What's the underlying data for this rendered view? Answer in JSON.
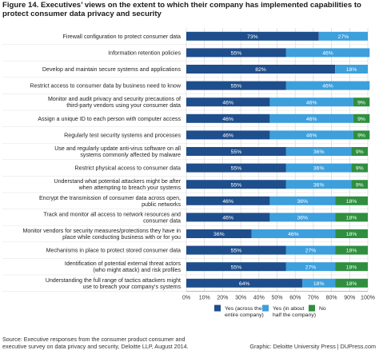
{
  "header": {
    "title": "Figure 14. Executives’ views on the extent to which their company has implemented capabilities to protect consumer data privacy and security"
  },
  "chart_data": {
    "type": "bar",
    "orientation": "horizontal",
    "stacked": true,
    "categories": [
      [
        "Firewall configuration to protect consumer data"
      ],
      [
        "Information retention policies"
      ],
      [
        "Develop and maintain secure systems and applications"
      ],
      [
        "Restrict access to consumer data by business need to know"
      ],
      [
        "Monitor and audit privacy and security precautions of",
        "third-party vendors using your consumer data"
      ],
      [
        "Assign a unique ID to each person with computer access"
      ],
      [
        "Regularly test security systems and processes"
      ],
      [
        "Use and regularly update anti-virus software on all",
        "systems commonly affected by malware"
      ],
      [
        "Restrict physical access to consumer data"
      ],
      [
        "Understand what potential attackers might be after",
        "when attempting to breach your systems"
      ],
      [
        "Encrypt the transmission of consumer data across open,",
        "public networks"
      ],
      [
        "Track and monitor all access to network resources and",
        "consumer data"
      ],
      [
        "Monitor vendors for security measures/protections they have in",
        "place while conducting business with or for you"
      ],
      [
        "Mechanisms in place to protect stored consumer data"
      ],
      [
        "Identification of potential external threat actors",
        "(who might attack) and risk profiles"
      ],
      [
        "Understanding the full range of tactics attackers might",
        "use to breach your company’s systems"
      ]
    ],
    "series": [
      {
        "name": "Yes (across the entire company)",
        "color": "#1f4e8c",
        "values": [
          73,
          55,
          82,
          55,
          46,
          46,
          46,
          55,
          55,
          55,
          46,
          46,
          36,
          55,
          55,
          64
        ]
      },
      {
        "name": "Yes (in about half the company)",
        "color": "#3d9fdc",
        "values": [
          27,
          46,
          18,
          46,
          46,
          46,
          46,
          36,
          36,
          36,
          36,
          36,
          46,
          27,
          27,
          18
        ]
      },
      {
        "name": "No",
        "color": "#2f8f3f",
        "values": [
          0,
          0,
          0,
          0,
          9,
          9,
          9,
          9,
          9,
          9,
          18,
          18,
          18,
          18,
          18,
          18
        ]
      }
    ],
    "value_format": "percent",
    "xlim": [
      0,
      100
    ],
    "xticks": [
      "0%",
      "10%",
      "20%",
      "30%",
      "40%",
      "50%",
      "60%",
      "70%",
      "80%",
      "90%",
      "100%"
    ],
    "grid": true,
    "legend_position": "bottom"
  },
  "footer": {
    "source": "Source: Executive responses from the consumer product consumer and executive survey on data privacy and security, Deloitte LLP, August 2014.",
    "credit": "Graphic: Deloitte University Press | DUPress.com"
  }
}
